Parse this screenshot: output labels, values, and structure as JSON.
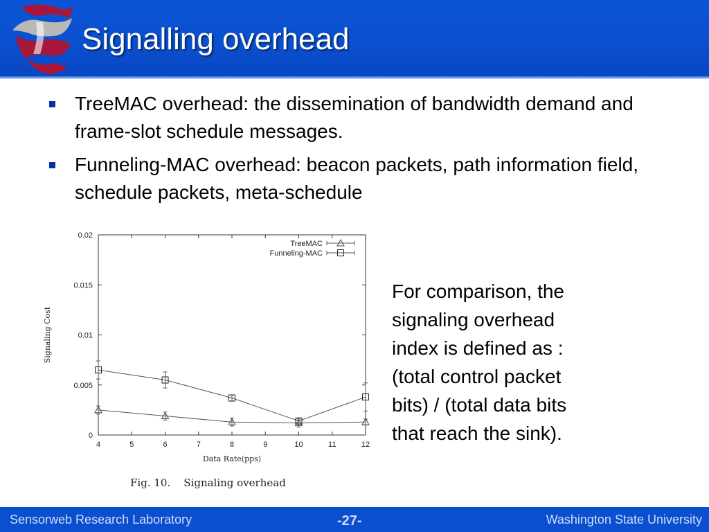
{
  "slide": {
    "title": "Signalling overhead",
    "bullets": [
      "TreeMAC overhead: the dissemination of bandwidth demand and frame-slot schedule messages.",
      "Funneling-MAC overhead: beacon packets, path information field, schedule packets, meta-schedule"
    ],
    "side_note": "For comparison, the\nsignaling overhead\nindex is defined as :\n(total control packet\nbits) / (total data bits\nthat reach the sink).",
    "figure_caption": "Fig. 10.    Signaling overhead"
  },
  "footer": {
    "left": "Sensorweb Research Laboratory",
    "center": "-27-",
    "right": "Washington State University"
  },
  "logo": {
    "name": "wsu-cougar-logo",
    "colors": {
      "crimson": "#a8163a",
      "gray": "#b8b8b8"
    }
  },
  "colors": {
    "header_blue": "#0a55d6",
    "footer_blue": "#0a4fd0",
    "bullet": "#0a2fa8"
  },
  "chart_data": {
    "type": "line",
    "title": "",
    "xlabel": "Data Rate(pps)",
    "ylabel": "Signaling Cost",
    "xlim": [
      4,
      12
    ],
    "ylim": [
      0,
      0.02
    ],
    "x_ticks": [
      "4",
      "5",
      "6",
      "7",
      "8",
      "9",
      "10",
      "11",
      "12"
    ],
    "y_ticks": [
      "0",
      "0.005",
      "0.01",
      "0.015",
      "0.02"
    ],
    "legend_position": "top-right",
    "series": [
      {
        "name": "TreeMAC",
        "marker": "triangle",
        "x": [
          4,
          6,
          8,
          10,
          12
        ],
        "y": [
          0.0025,
          0.0019,
          0.0013,
          0.0012,
          0.0013
        ],
        "err": [
          0.0004,
          0.0004,
          0.0004,
          0.0004,
          0.0003
        ]
      },
      {
        "name": "Funneling-MAC",
        "marker": "square",
        "x": [
          4,
          6,
          8,
          10,
          12
        ],
        "y": [
          0.0065,
          0.0055,
          0.0037,
          0.0014,
          0.0038
        ],
        "err": [
          0.0009,
          0.0008,
          0.0003,
          0.0003,
          0.0014
        ]
      }
    ]
  }
}
